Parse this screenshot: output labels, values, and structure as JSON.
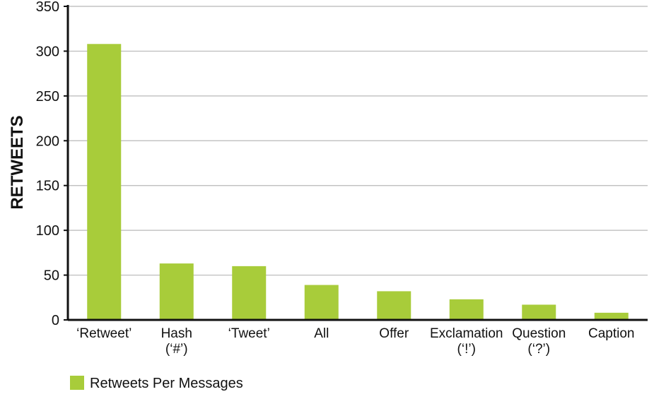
{
  "chart_data": {
    "type": "bar",
    "categories": [
      "‘Retweet’",
      "Hash\n(‘#’)",
      "‘Tweet’",
      "All",
      "Offer",
      "Exclamation\n(‘!’)",
      "Question\n(‘?’)",
      "Caption"
    ],
    "series": [
      {
        "name": "Retweets Per Messages",
        "values": [
          308,
          63,
          60,
          39,
          32,
          23,
          17,
          8
        ]
      }
    ],
    "title": "",
    "xlabel": "",
    "ylabel": "RETWEETS",
    "ylim": [
      0,
      350
    ],
    "yticks": [
      0,
      50,
      100,
      150,
      200,
      250,
      300,
      350
    ],
    "grid": true,
    "legend_position": "bottom-left",
    "colors": {
      "bar": "#a8cc3a",
      "grid": "#b8b8b8",
      "axis": "#111111"
    }
  }
}
